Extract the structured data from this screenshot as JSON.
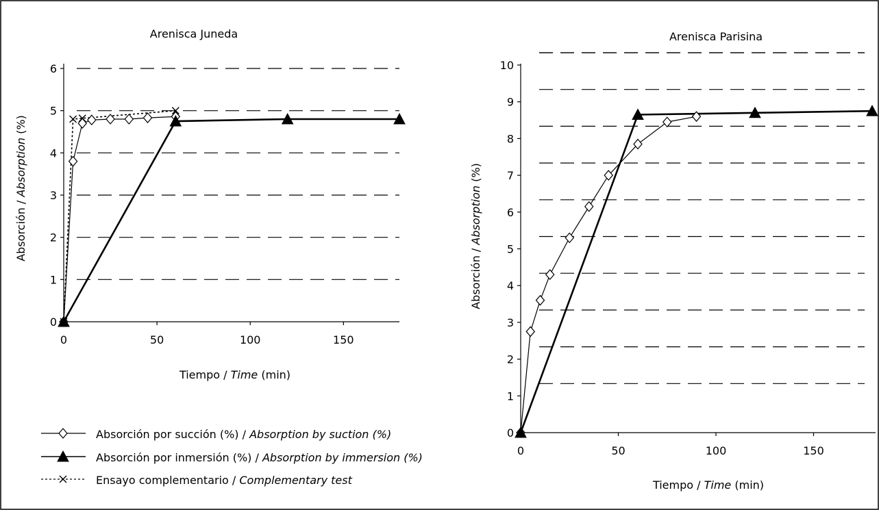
{
  "chart_data": [
    {
      "type": "line",
      "title": "Arenisca Juneda",
      "xlabel_parts": [
        "Tiempo / ",
        "Time",
        " (min)"
      ],
      "ylabel_parts": [
        "Absorción / ",
        "Absorption",
        " (%)"
      ],
      "xlim": [
        0,
        180
      ],
      "ylim": [
        0,
        6
      ],
      "xticks": [
        0,
        50,
        100,
        150
      ],
      "yticks": [
        0,
        1,
        2,
        3,
        4,
        5,
        6
      ],
      "grid": true,
      "series": [
        {
          "name": "Absorción por succión (%) / Absorption by suction (%)",
          "marker": "diamond",
          "x": [
            0,
            5,
            10,
            15,
            25,
            35,
            45,
            60
          ],
          "y": [
            0,
            3.8,
            4.7,
            4.78,
            4.8,
            4.8,
            4.83,
            4.86
          ]
        },
        {
          "name": "Absorción por inmersión (%) / Absorption by immersion (%)",
          "marker": "triangle",
          "x": [
            0,
            60,
            120,
            180
          ],
          "y": [
            0,
            4.75,
            4.8,
            4.8
          ]
        },
        {
          "name": "Ensayo complementario / Complementary test",
          "marker": "x",
          "x": [
            0,
            5,
            10,
            60
          ],
          "y": [
            0,
            4.8,
            4.82,
            5.0
          ]
        }
      ]
    },
    {
      "type": "line",
      "title": "Arenisca Parisina",
      "xlabel_parts": [
        "Tiempo / ",
        "Time",
        " (min)"
      ],
      "ylabel_parts": [
        "Absorción / ",
        "Absorption",
        " (%)"
      ],
      "xlim": [
        0,
        180
      ],
      "ylim": [
        0,
        10
      ],
      "xticks": [
        0,
        50,
        100,
        150
      ],
      "yticks": [
        0,
        1,
        2,
        3,
        4,
        5,
        6,
        7,
        8,
        9,
        10
      ],
      "grid": true,
      "series": [
        {
          "name": "Absorción por succión (%) / Absorption by suction (%)",
          "marker": "diamond",
          "x": [
            0,
            5,
            10,
            15,
            25,
            35,
            45,
            60,
            75,
            90
          ],
          "y": [
            0,
            2.75,
            3.6,
            4.3,
            5.3,
            6.15,
            7.0,
            7.85,
            8.45,
            8.6
          ]
        },
        {
          "name": "Absorción por inmersión (%) / Absorption by immersion (%)",
          "marker": "triangle",
          "x": [
            0,
            60,
            120,
            180
          ],
          "y": [
            0,
            8.65,
            8.7,
            8.75
          ]
        }
      ]
    }
  ],
  "legend": [
    {
      "marker": "diamond",
      "text": "Absorción por succión (%) / ",
      "italic": "Absorption by suction (%)"
    },
    {
      "marker": "triangle",
      "text": "Absorción por inmersión (%) / ",
      "italic": "Absorption by immersion (%)"
    },
    {
      "marker": "x",
      "text": "Ensayo complementario / ",
      "italic": "Complementary test"
    }
  ]
}
